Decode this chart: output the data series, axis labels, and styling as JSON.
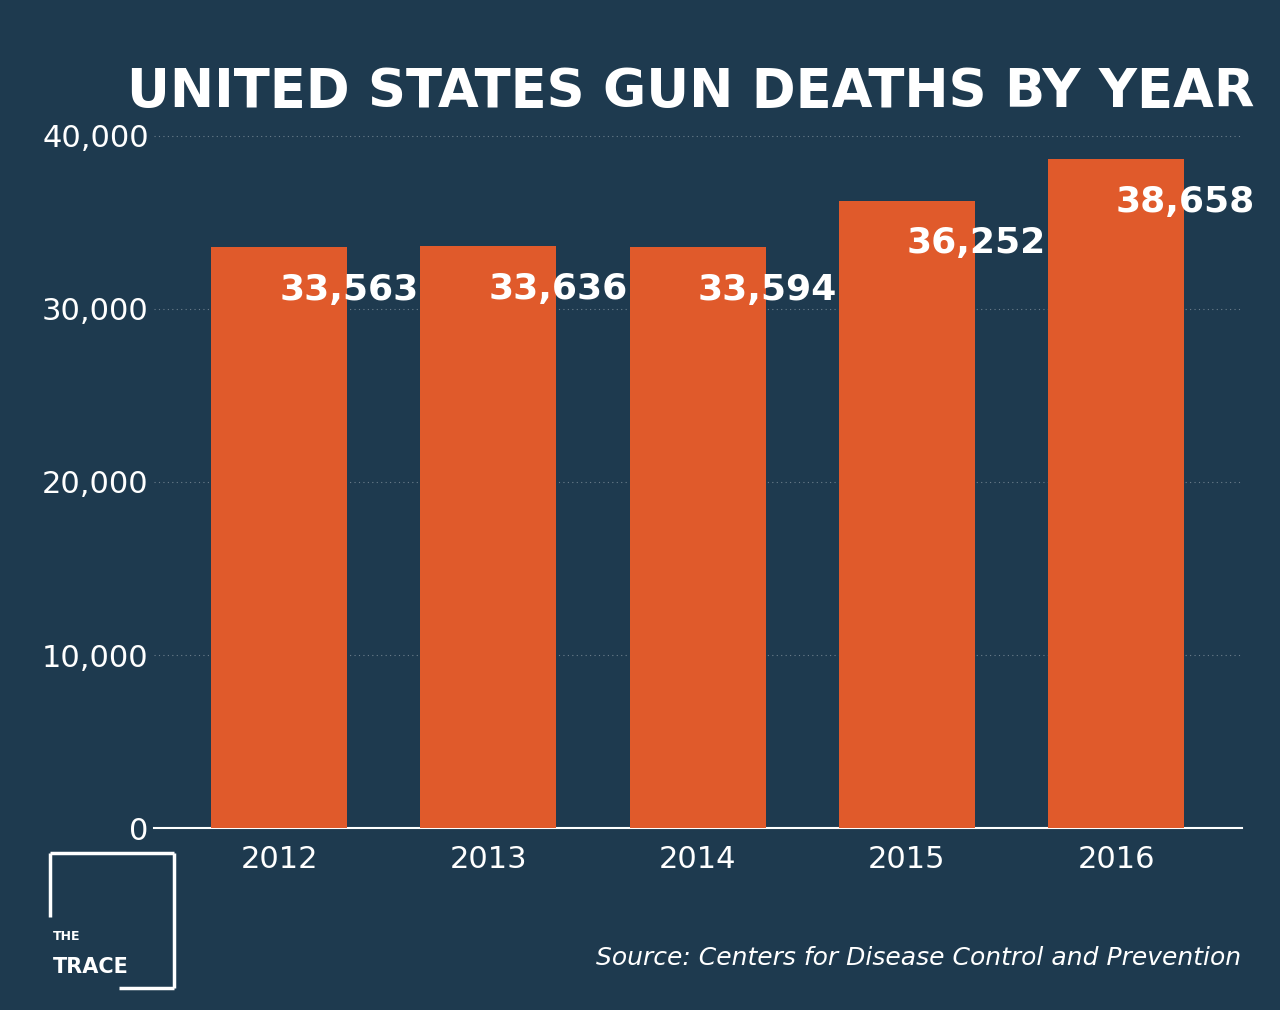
{
  "title": "UNITED STATES GUN DEATHS BY YEAR",
  "years": [
    "2012",
    "2013",
    "2014",
    "2015",
    "2016"
  ],
  "values": [
    33563,
    33636,
    33594,
    36252,
    38658
  ],
  "bar_color": "#E05A2B",
  "background_color": "#1E3A4F",
  "text_color": "#FFFFFF",
  "label_color": "#FFFFFF",
  "grid_color": "#FFFFFF",
  "source_text": "Source: Centers for Disease Control and Prevention",
  "title_fontsize": 38,
  "tick_fontsize": 22,
  "bar_label_fontsize": 26,
  "source_fontsize": 18,
  "ylim": [
    0,
    42000
  ],
  "yticks": [
    0,
    10000,
    20000,
    30000,
    40000
  ],
  "bar_width": 0.65
}
